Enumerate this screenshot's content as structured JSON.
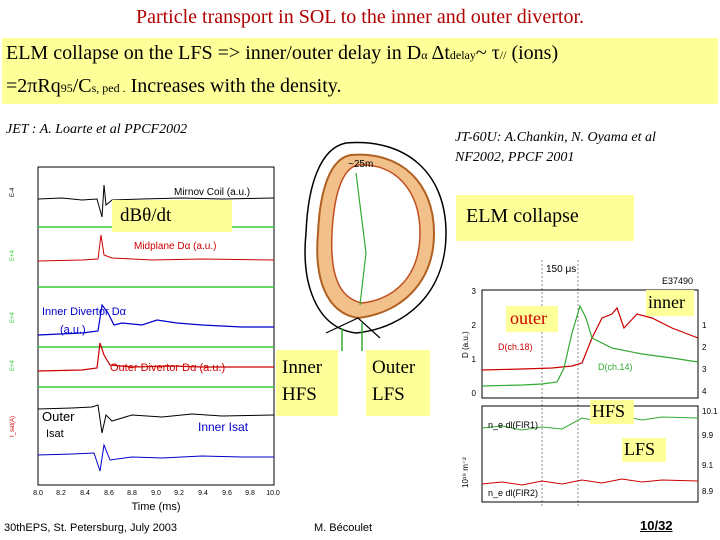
{
  "title": "Particle transport in SOL to the inner and outer divertor.",
  "intro": {
    "l1_a": "ELM collapse on the LFS => inner/outer  delay in D",
    "alpha": "α",
    "delta_t": "Δt",
    "sub_delay": "delay",
    "tilde": "~",
    "tau": "τ",
    "sub_par": "//",
    "ions": " (ions)",
    "l2_a": "=2πRq",
    "sub_95": "95",
    "l2_b": "/C",
    "sub_sped": "s, ped .",
    "l2_c": " Increases with the density."
  },
  "refs": {
    "left": "JET : A. Loarte et al PPCF2002",
    "right_1": "JT-60U: A.Chankin, N. Oyama et al",
    "right_2": "NF2002, PPCF 2001"
  },
  "labels": {
    "dbdt": "dBθ/dt",
    "elm": "ELM collapse",
    "inner_hfs": [
      "Inner",
      "HFS"
    ],
    "outer_lfs": [
      "Outer",
      "LFS"
    ],
    "outer": "outer",
    "inner": "inner",
    "hfs": "HFS",
    "lfs": "LFS"
  },
  "jet_plot": {
    "traces": [
      "Mirnov Coil (a.u.)",
      "Midplane Dα (a.u.)",
      "Inner Divertor Dα",
      "(a.u.)",
      "Outer Divertor Dα (a.u.)",
      "Outer",
      "Isat",
      "Inner Isat"
    ],
    "ylabels": [
      "E-4",
      "E+4",
      "E+4",
      "E+4",
      "I_sat(A)"
    ],
    "xticks": [
      "8.0",
      "8.2",
      "8.4",
      "8.6",
      "8.8",
      "9.0",
      "9.2",
      "9.4",
      "9.6",
      "9.8",
      "10.0"
    ],
    "xlabel": "Time (ms)"
  },
  "jt60_plot": {
    "scale": "150 μs",
    "shot": "E37490",
    "legend1": "D(ch.18)",
    "legend1b": "D(ch.14)",
    "legend2a": "n_e dl(FIR1)",
    "legend2b": "n_e dl(FIR2)",
    "yt1": [
      "3",
      "2",
      "1",
      "0"
    ],
    "yt1r": [
      "1",
      "2",
      "3",
      "4"
    ],
    "yl1": "D (a.u.)",
    "yt2": [
      "10.1",
      "9.9",
      "9.1",
      "8.9"
    ],
    "yl2": "10¹⁹ m⁻²"
  },
  "torus_scale": "~25m",
  "footer": {
    "left": "30thEPS, St. Petersburg, July 2003",
    "center": "M. Bécoulet",
    "page": "10/32"
  }
}
